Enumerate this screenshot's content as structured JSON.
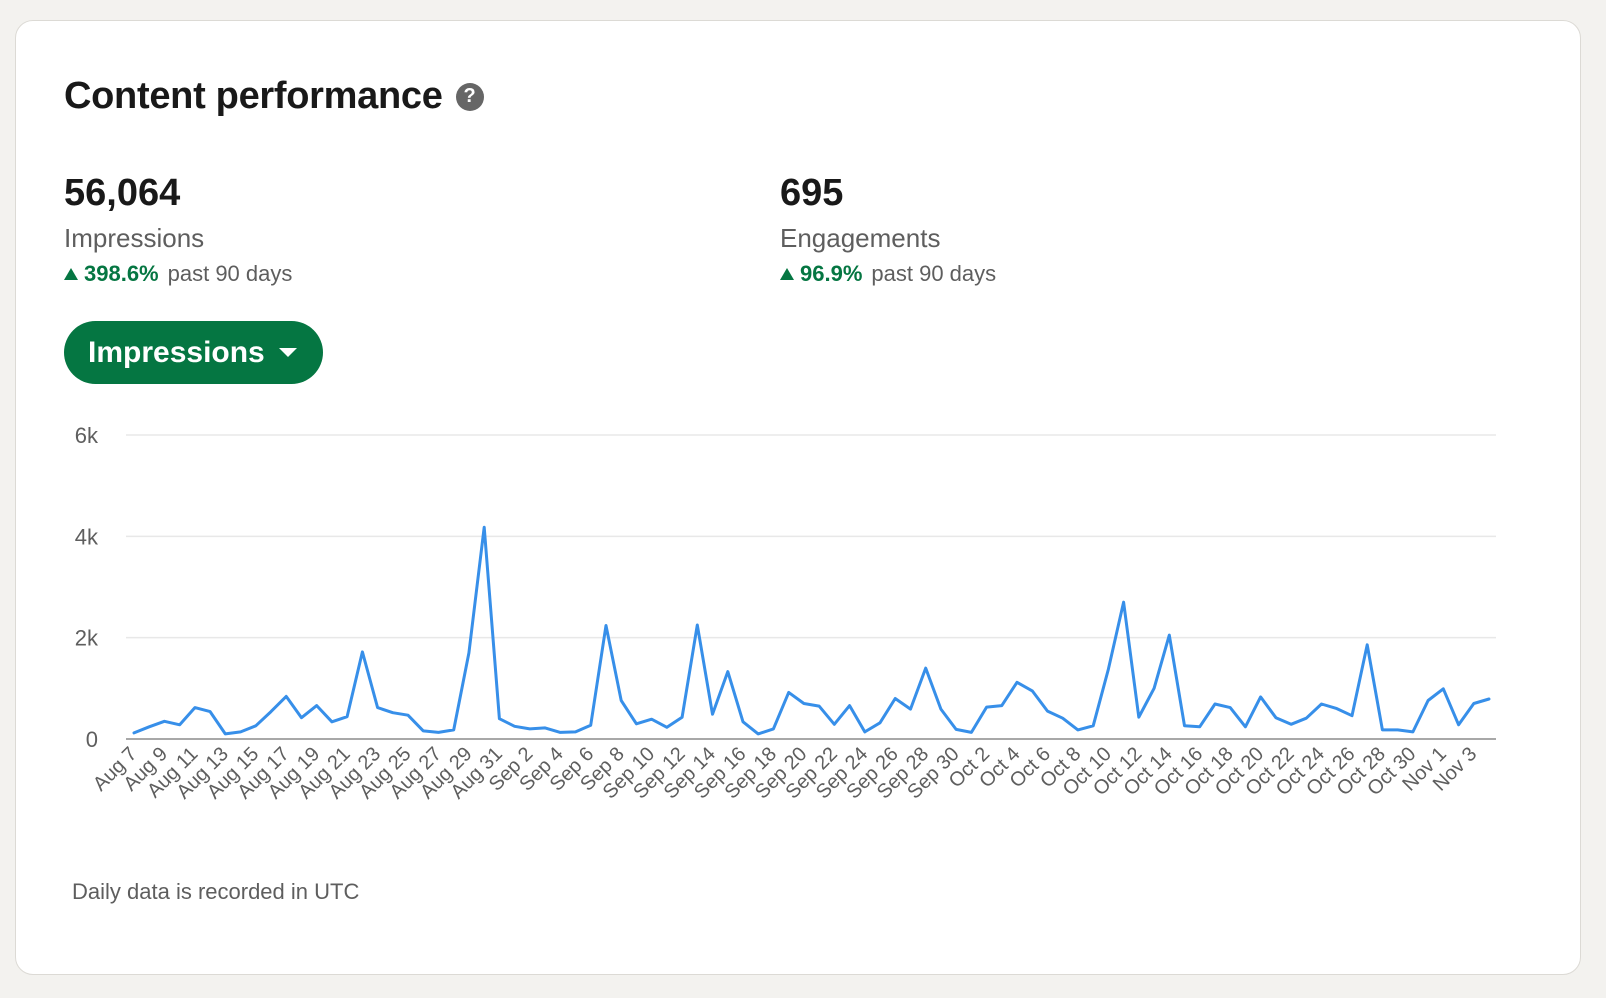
{
  "card": {
    "title": "Content performance",
    "help_glyph": "?"
  },
  "metrics": [
    {
      "value": "56,064",
      "label": "Impressions",
      "change": "398.6%",
      "period": "past 90 days"
    },
    {
      "value": "695",
      "label": "Engagements",
      "change": "96.9%",
      "period": "past 90 days"
    }
  ],
  "dropdown": {
    "label": "Impressions"
  },
  "footnote": "Daily data is recorded in UTC",
  "colors": {
    "accent": "#057642",
    "line": "#378fe9",
    "grid": "#e8e8e8"
  },
  "chart_data": {
    "type": "line",
    "series_name": "Impressions",
    "ylim": [
      0,
      6000
    ],
    "yticks": [
      0,
      2000,
      4000,
      6000
    ],
    "ytick_labels": [
      "0",
      "2k",
      "4k",
      "6k"
    ],
    "xtick_labels": [
      "Aug 7",
      "Aug 9",
      "Aug 11",
      "Aug 13",
      "Aug 15",
      "Aug 17",
      "Aug 19",
      "Aug 21",
      "Aug 23",
      "Aug 25",
      "Aug 27",
      "Aug 29",
      "Aug 31",
      "Sep 2",
      "Sep 4",
      "Sep 6",
      "Sep 8",
      "Sep 10",
      "Sep 12",
      "Sep 14",
      "Sep 16",
      "Sep 18",
      "Sep 20",
      "Sep 22",
      "Sep 24",
      "Sep 26",
      "Sep 28",
      "Sep 30",
      "Oct 2",
      "Oct 4",
      "Oct 6",
      "Oct 8",
      "Oct 10",
      "Oct 12",
      "Oct 14",
      "Oct 16",
      "Oct 18",
      "Oct 20",
      "Oct 22",
      "Oct 24",
      "Oct 26",
      "Oct 28",
      "Oct 30",
      "Nov 1",
      "Nov 3"
    ],
    "grid": true,
    "values": [
      120,
      240,
      350,
      280,
      620,
      540,
      100,
      140,
      260,
      540,
      840,
      420,
      660,
      340,
      440,
      1720,
      620,
      520,
      470,
      160,
      130,
      180,
      1700,
      4180,
      400,
      250,
      200,
      220,
      130,
      140,
      270,
      2240,
      760,
      300,
      390,
      230,
      430,
      2250,
      490,
      1330,
      340,
      100,
      200,
      920,
      700,
      650,
      290,
      660,
      140,
      320,
      800,
      590,
      1400,
      590,
      190,
      130,
      630,
      660,
      1120,
      950,
      550,
      410,
      180,
      260,
      1380,
      2700,
      430,
      1000,
      2050,
      260,
      240,
      690,
      620,
      240,
      830,
      420,
      290,
      410,
      690,
      600,
      460,
      1860,
      180,
      180,
      140,
      760,
      990,
      280,
      700,
      790
    ]
  }
}
